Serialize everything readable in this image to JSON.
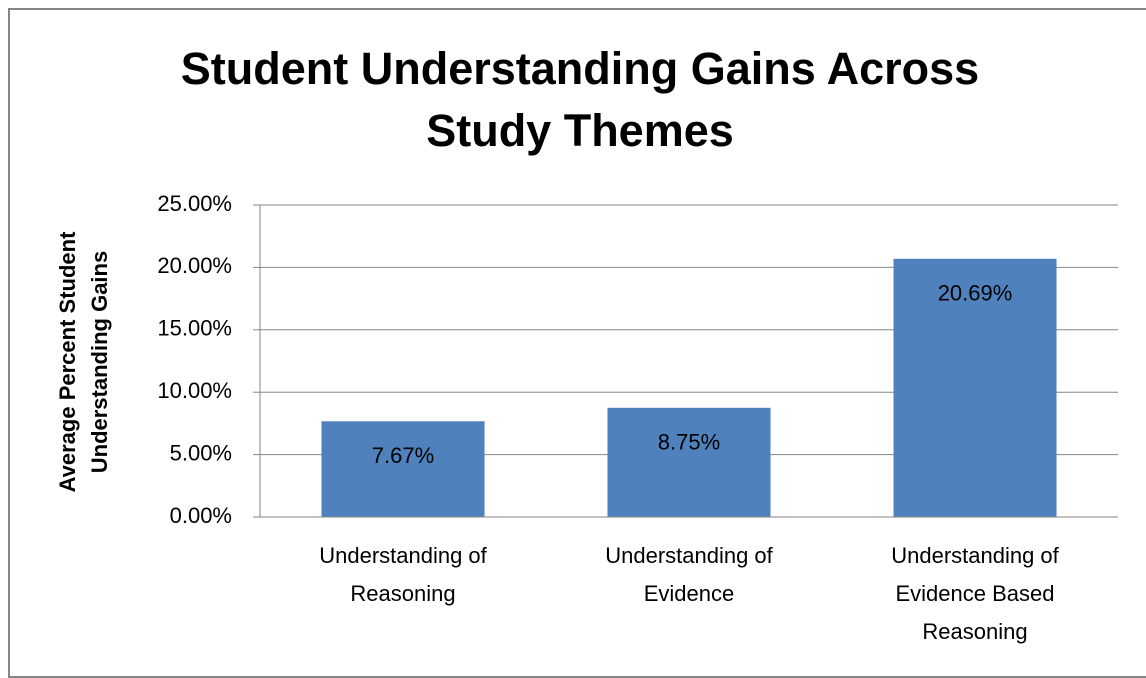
{
  "chart_data": {
    "type": "bar",
    "title": "Student Understanding Gains Across Study Themes",
    "y_label": "Average Percent Student Understanding Gains",
    "categories": [
      "Understanding of Reasoning",
      "Understanding of Evidence",
      "Understanding of Evidence Based Reasoning"
    ],
    "values": [
      7.67,
      8.75,
      20.69
    ],
    "value_labels": [
      "7.67%",
      "8.75%",
      "20.69%"
    ],
    "color": "#4f81bd",
    "ylim": [
      0,
      25
    ],
    "yticks": [
      {
        "value": 0,
        "label": "0.00%"
      },
      {
        "value": 5,
        "label": "5.00%"
      },
      {
        "value": 10,
        "label": "10.00%"
      },
      {
        "value": 15,
        "label": "15.00%"
      },
      {
        "value": 20,
        "label": "20.00%"
      },
      {
        "value": 25,
        "label": "25.00%"
      }
    ],
    "grid": true
  }
}
